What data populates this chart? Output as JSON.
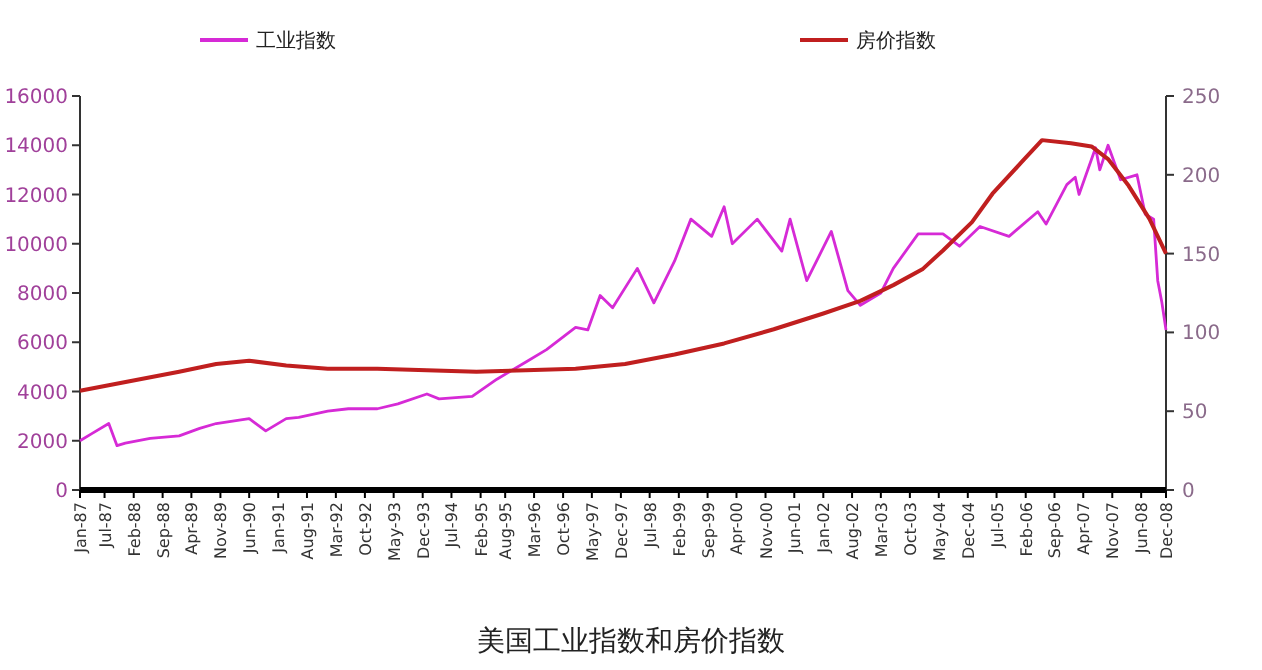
{
  "chart_data": {
    "type": "line",
    "title": "美国工业指数和房价指数",
    "legend": "top",
    "grid": false,
    "marker": "none",
    "line_style": "solid",
    "xlim": [
      "1987-01",
      "2008-12"
    ],
    "xticks": [
      {
        "value": "1987-01",
        "label": "Jan-87"
      },
      {
        "value": "1987-07",
        "label": "Jul-87"
      },
      {
        "value": "1988-02",
        "label": "Feb-88"
      },
      {
        "value": "1988-09",
        "label": "Sep-88"
      },
      {
        "value": "1989-04",
        "label": "Apr-89"
      },
      {
        "value": "1989-11",
        "label": "Nov-89"
      },
      {
        "value": "1990-06",
        "label": "Jun-90"
      },
      {
        "value": "1991-01",
        "label": "Jan-91"
      },
      {
        "value": "1991-08",
        "label": "Aug-91"
      },
      {
        "value": "1992-03",
        "label": "Mar-92"
      },
      {
        "value": "1992-10",
        "label": "Oct-92"
      },
      {
        "value": "1993-05",
        "label": "May-93"
      },
      {
        "value": "1993-12",
        "label": "Dec-93"
      },
      {
        "value": "1994-07",
        "label": "Jul-94"
      },
      {
        "value": "1995-02",
        "label": "Feb-95"
      },
      {
        "value": "1995-08",
        "label": "Aug-95"
      },
      {
        "value": "1996-03",
        "label": "Mar-96"
      },
      {
        "value": "1996-10",
        "label": "Oct-96"
      },
      {
        "value": "1997-05",
        "label": "May-97"
      },
      {
        "value": "1997-12",
        "label": "Dec-97"
      },
      {
        "value": "1998-07",
        "label": "Jul-98"
      },
      {
        "value": "1999-02",
        "label": "Feb-99"
      },
      {
        "value": "1999-09",
        "label": "Sep-99"
      },
      {
        "value": "2000-04",
        "label": "Apr-00"
      },
      {
        "value": "2000-11",
        "label": "Nov-00"
      },
      {
        "value": "2001-06",
        "label": "Jun-01"
      },
      {
        "value": "2002-01",
        "label": "Jan-02"
      },
      {
        "value": "2002-08",
        "label": "Aug-02"
      },
      {
        "value": "2003-03",
        "label": "Mar-03"
      },
      {
        "value": "2003-10",
        "label": "Oct-03"
      },
      {
        "value": "2004-05",
        "label": "May-04"
      },
      {
        "value": "2004-12",
        "label": "Dec-04"
      },
      {
        "value": "2005-07",
        "label": "Jul-05"
      },
      {
        "value": "2006-02",
        "label": "Feb-06"
      },
      {
        "value": "2006-09",
        "label": "Sep-06"
      },
      {
        "value": "2007-04",
        "label": "Apr-07"
      },
      {
        "value": "2007-11",
        "label": "Nov-07"
      },
      {
        "value": "2008-06",
        "label": "Jun-08"
      },
      {
        "value": "2008-12",
        "label": "Dec-08"
      }
    ],
    "ylim": [
      0,
      16000
    ],
    "yticks": [
      0,
      2000,
      4000,
      6000,
      8000,
      10000,
      12000,
      14000,
      16000
    ],
    "y2lim": [
      0,
      250
    ],
    "y2ticks": [
      0,
      50,
      100,
      150,
      200,
      250
    ],
    "series": [
      {
        "name": "工业指数",
        "color": "#d62ad6",
        "x": [
          "1987-01",
          "1987-04",
          "1987-08",
          "1987-10",
          "1987-12",
          "1988-06",
          "1989-01",
          "1989-06",
          "1989-10",
          "1990-06",
          "1990-10",
          "1991-03",
          "1991-06",
          "1992-01",
          "1992-06",
          "1993-01",
          "1993-06",
          "1994-01",
          "1994-04",
          "1994-12",
          "1995-06",
          "1996-01",
          "1996-06",
          "1997-01",
          "1997-04",
          "1997-07",
          "1997-10",
          "1998-04",
          "1998-08",
          "1999-01",
          "1999-05",
          "1999-10",
          "2000-01",
          "2000-03",
          "2000-09",
          "2001-03",
          "2001-05",
          "2001-09",
          "2002-03",
          "2002-07",
          "2002-10",
          "2003-03",
          "2003-06",
          "2003-12",
          "2004-06",
          "2004-10",
          "2005-03",
          "2005-10",
          "2006-05",
          "2006-07",
          "2006-12",
          "2007-02",
          "2007-03",
          "2007-07",
          "2007-08",
          "2007-10",
          "2008-01",
          "2008-05",
          "2008-07",
          "2008-09",
          "2008-10",
          "2008-11",
          "2008-12"
        ],
        "values": [
          2000,
          2300,
          2700,
          1800,
          1900,
          2100,
          2200,
          2500,
          2700,
          2900,
          2400,
          2900,
          2950,
          3200,
          3300,
          3300,
          3500,
          3900,
          3700,
          3800,
          4500,
          5200,
          5700,
          6600,
          6500,
          7900,
          7400,
          9000,
          7600,
          9300,
          11000,
          10300,
          11500,
          10000,
          11000,
          9700,
          11000,
          8500,
          10500,
          8100,
          7500,
          8000,
          9000,
          10400,
          10400,
          9900,
          10700,
          10300,
          11300,
          10800,
          12400,
          12700,
          12000,
          13900,
          13000,
          14000,
          12600,
          12800,
          11200,
          11000,
          8500,
          7600,
          6500
        ]
      },
      {
        "name": "房价指数",
        "color": "#c01f1f",
        "axis": "y2",
        "x": [
          "1987-01",
          "1988-01",
          "1989-01",
          "1989-10",
          "1990-06",
          "1991-03",
          "1992-01",
          "1993-01",
          "1994-01",
          "1995-01",
          "1996-01",
          "1997-01",
          "1998-01",
          "1999-01",
          "2000-01",
          "2001-01",
          "2002-01",
          "2002-10",
          "2003-06",
          "2004-01",
          "2004-06",
          "2005-01",
          "2005-06",
          "2006-01",
          "2006-06",
          "2007-01",
          "2007-06",
          "2007-10",
          "2008-03",
          "2008-08",
          "2008-12"
        ],
        "values": [
          63,
          69,
          75,
          80,
          82,
          79,
          77,
          77,
          76,
          75,
          76,
          77,
          80,
          86,
          93,
          102,
          112,
          120,
          130,
          140,
          152,
          170,
          188,
          208,
          222,
          220,
          218,
          210,
          193,
          172,
          150
        ]
      }
    ]
  }
}
